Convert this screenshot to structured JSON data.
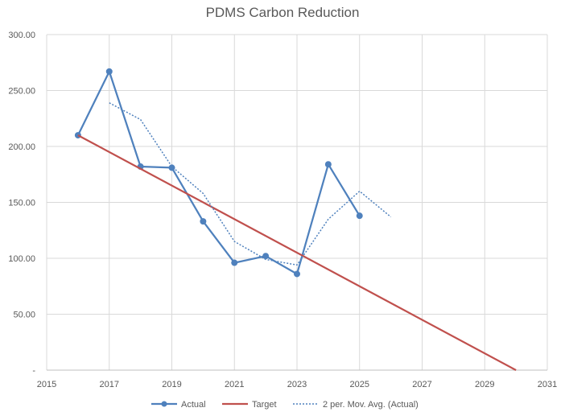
{
  "chart_data": {
    "type": "line",
    "title": "PDMS Carbon Reduction",
    "xlim": [
      2015,
      2031
    ],
    "ylim": [
      0,
      300
    ],
    "x_ticks": [
      {
        "value": 2015,
        "label": "2015"
      },
      {
        "value": 2017,
        "label": "2017"
      },
      {
        "value": 2019,
        "label": "2019"
      },
      {
        "value": 2021,
        "label": "2021"
      },
      {
        "value": 2023,
        "label": "2023"
      },
      {
        "value": 2025,
        "label": "2025"
      },
      {
        "value": 2027,
        "label": "2027"
      },
      {
        "value": 2029,
        "label": "2029"
      },
      {
        "value": 2031,
        "label": "2031"
      }
    ],
    "y_ticks": [
      {
        "value": 0,
        "label": "-"
      },
      {
        "value": 50,
        "label": "50.00"
      },
      {
        "value": 100,
        "label": "100.00"
      },
      {
        "value": 150,
        "label": "150.00"
      },
      {
        "value": 200,
        "label": "200.00"
      },
      {
        "value": 250,
        "label": "250.00"
      },
      {
        "value": 300,
        "label": "300.00"
      }
    ],
    "grid": true,
    "legend_position": "bottom",
    "series": [
      {
        "name": "Actual",
        "style": "solid-markers",
        "color": "#4f81bd",
        "x": [
          2016,
          2017,
          2018,
          2019,
          2020,
          2021,
          2022,
          2023,
          2024,
          2025
        ],
        "y": [
          210,
          267,
          182,
          181,
          133,
          96,
          102,
          86,
          184,
          138
        ]
      },
      {
        "name": "Target",
        "style": "solid",
        "color": "#c0504d",
        "x": [
          2016,
          2030
        ],
        "y": [
          210,
          0
        ]
      },
      {
        "name": "2 per. Mov. Avg. (Actual)",
        "style": "dotted",
        "color": "#4f81bd",
        "x": [
          2017,
          2018,
          2019,
          2020,
          2021,
          2022,
          2023,
          2024,
          2025,
          2026
        ],
        "y": [
          239,
          224,
          182,
          158,
          115,
          99,
          94,
          135,
          160,
          137
        ]
      }
    ]
  }
}
